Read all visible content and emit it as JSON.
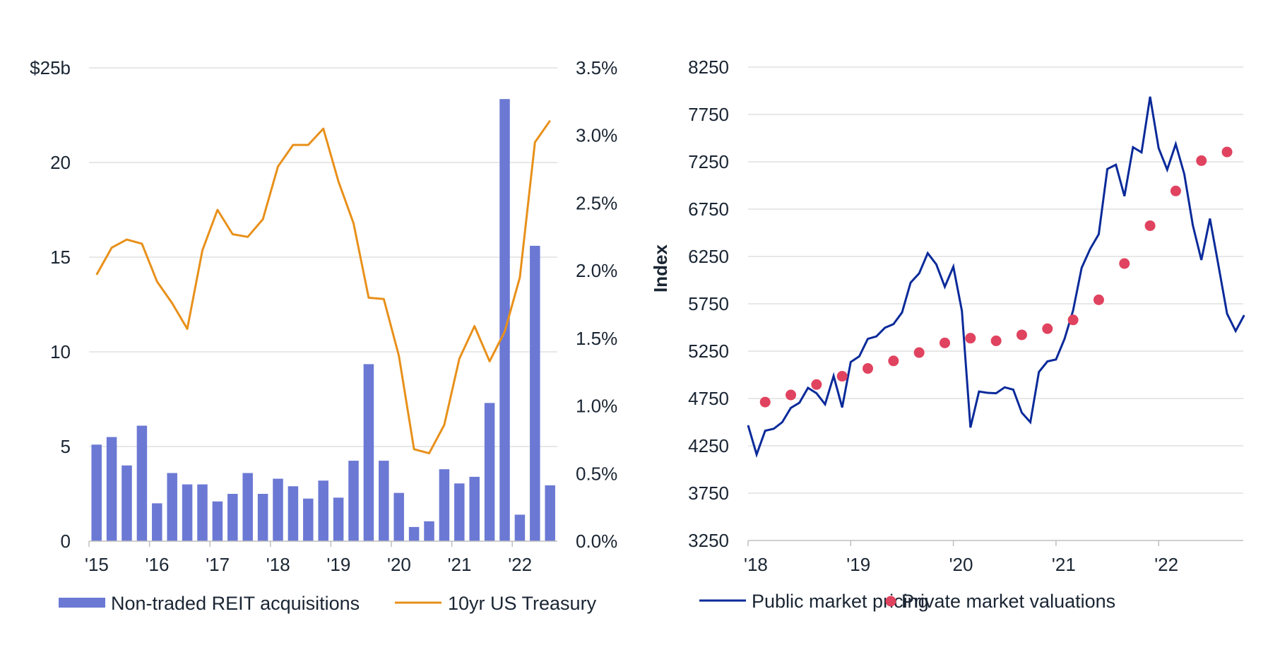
{
  "chart_data": [
    {
      "type": "bar+line",
      "title": "",
      "xlabel": "",
      "ylabel": "",
      "y2label": "",
      "x_tick_labels": [
        "'15",
        "'16",
        "'17",
        "'18",
        "'19",
        "'20",
        "'21",
        "'22"
      ],
      "y_tick_labels": [
        "0",
        "5",
        "10",
        "15",
        "20",
        "$25b"
      ],
      "y_ticks": [
        0,
        5,
        10,
        15,
        20,
        25
      ],
      "y2_tick_labels": [
        "0.0%",
        "0.5%",
        "1.0%",
        "1.5%",
        "2.0%",
        "2.5%",
        "3.0%",
        "3.5%"
      ],
      "y2_ticks": [
        0,
        0.5,
        1.0,
        1.5,
        2.0,
        2.5,
        3.0,
        3.5
      ],
      "ylim": [
        0,
        25
      ],
      "y2lim": [
        0,
        3.5
      ],
      "x_start_year": 2015,
      "periods_per_year": 4,
      "categories": [
        "Q1 2015",
        "Q2 2015",
        "Q3 2015",
        "Q4 2015",
        "Q1 2016",
        "Q2 2016",
        "Q3 2016",
        "Q4 2016",
        "Q1 2017",
        "Q2 2017",
        "Q3 2017",
        "Q4 2017",
        "Q1 2018",
        "Q2 2018",
        "Q3 2018",
        "Q4 2018",
        "Q1 2019",
        "Q2 2019",
        "Q3 2019",
        "Q4 2019",
        "Q1 2020",
        "Q2 2020",
        "Q3 2020",
        "Q4 2020",
        "Q1 2021",
        "Q2 2021",
        "Q3 2021",
        "Q4 2021",
        "Q1 2022",
        "Q2 2022",
        "Q3 2022"
      ],
      "grid": true,
      "legend_position": "bottom",
      "series": [
        {
          "name": "Non-traded REIT acquisitions",
          "type": "bar",
          "axis": "left",
          "unit": "$b",
          "color": "#6b79d4",
          "values": [
            5.1,
            5.5,
            4.0,
            6.1,
            2.0,
            3.6,
            3.0,
            3.0,
            2.1,
            2.5,
            3.6,
            2.5,
            3.3,
            2.9,
            2.25,
            3.2,
            2.3,
            4.25,
            9.35,
            4.25,
            2.55,
            0.75,
            1.05,
            3.8,
            3.05,
            3.4,
            7.3,
            23.35,
            1.4,
            15.6,
            2.95
          ]
        },
        {
          "name": "10yr US Treasury",
          "type": "line",
          "axis": "right",
          "unit": "%",
          "color": "#e8901a",
          "values": [
            1.97,
            2.17,
            2.23,
            2.2,
            1.92,
            1.76,
            1.57,
            2.15,
            2.45,
            2.27,
            2.25,
            2.38,
            2.77,
            2.93,
            2.93,
            3.05,
            2.66,
            2.35,
            1.8,
            1.79,
            1.37,
            0.68,
            0.65,
            0.86,
            1.35,
            1.59,
            1.33,
            1.55,
            1.95,
            2.95,
            3.11
          ]
        }
      ]
    },
    {
      "type": "line+scatter",
      "title": "",
      "xlabel": "",
      "ylabel": "Index",
      "x_tick_labels": [
        "'18",
        "'19",
        "'20",
        "'21",
        "'22"
      ],
      "y_tick_labels": [
        "3250",
        "3750",
        "4250",
        "4750",
        "5250",
        "5750",
        "6250",
        "6750",
        "7250",
        "7750",
        "8250"
      ],
      "y_ticks": [
        3250,
        3750,
        4250,
        4750,
        5250,
        5750,
        6250,
        6750,
        7250,
        7750,
        8250
      ],
      "ylim": [
        3250,
        8250
      ],
      "x_start_year": 2018,
      "x_range_months": [
        0,
        58
      ],
      "grid": true,
      "legend_position": "bottom",
      "series": [
        {
          "name": "Public market pricing",
          "type": "line",
          "color": "#0a2a9a",
          "frequency": "monthly, Jan 2018 - Nov 2022",
          "x_months": [
            0,
            1,
            2,
            3,
            4,
            5,
            6,
            7,
            8,
            9,
            10,
            11,
            12,
            13,
            14,
            15,
            16,
            17,
            18,
            19,
            20,
            21,
            22,
            23,
            24,
            25,
            26,
            27,
            28,
            29,
            30,
            31,
            32,
            33,
            34,
            35,
            36,
            37,
            38,
            39,
            40,
            41,
            42,
            43,
            44,
            45,
            46,
            47,
            48,
            49,
            50,
            51,
            52,
            53,
            54,
            55,
            56,
            57,
            58
          ],
          "values": [
            4467,
            4158,
            4410,
            4430,
            4500,
            4650,
            4705,
            4862,
            4805,
            4688,
            4988,
            4655,
            5135,
            5195,
            5380,
            5405,
            5497,
            5535,
            5659,
            5974,
            6072,
            6285,
            6167,
            5930,
            6142,
            5675,
            4443,
            4823,
            4810,
            4805,
            4868,
            4843,
            4600,
            4499,
            5030,
            5142,
            5162,
            5380,
            5680,
            6130,
            6330,
            6485,
            7174,
            7219,
            6887,
            7404,
            7349,
            7937,
            7394,
            7167,
            7437,
            7120,
            6580,
            6213,
            6650,
            6150,
            5645,
            5463,
            5630
          ]
        },
        {
          "name": "Private market valuations",
          "type": "scatter",
          "color": "#e0435f",
          "frequency": "quarterly, Mar 2018 - Sep 2022",
          "x_months": [
            2,
            5,
            8,
            11,
            14,
            17,
            20,
            23,
            26,
            29,
            32,
            35,
            38,
            41,
            44,
            47,
            50,
            53,
            56
          ],
          "values": [
            4712,
            4787,
            4897,
            4985,
            5067,
            5147,
            5235,
            5337,
            5387,
            5359,
            5422,
            5487,
            5580,
            5792,
            6175,
            6575,
            6942,
            7262,
            7354
          ]
        }
      ]
    }
  ]
}
